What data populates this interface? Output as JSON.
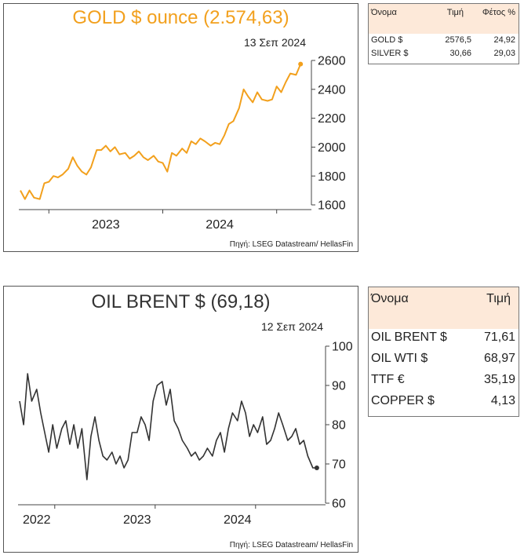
{
  "gold_panel": {
    "title": "GOLD $ ounce (2.574,63)",
    "date": "13 Σεπ 2024",
    "source": "Πηγή: LSEG Datastream/ HellasFin"
  },
  "oil_panel": {
    "title": "OIL BRENT $ (69,18)",
    "date": "12 Σεπ 2024",
    "source": "Πηγή: LSEG Datastream/ HellasFin"
  },
  "gold_table": {
    "headers": [
      "Όνομα",
      "Τιμή",
      "Φέτος %"
    ],
    "rows": [
      [
        "GOLD $",
        "2576,5",
        "24,92"
      ],
      [
        "SILVER $",
        "30,66",
        "29,03"
      ]
    ]
  },
  "oil_table": {
    "headers": [
      "Όνομα",
      "Τιμή"
    ],
    "rows": [
      [
        "OIL BRENT $",
        "71,61"
      ],
      [
        "OIL WTI $",
        "68,97"
      ],
      [
        "TTF €",
        "35,19"
      ],
      [
        "COPPER $",
        "4,13"
      ]
    ]
  },
  "chart_data": [
    {
      "type": "line",
      "title": "GOLD $ ounce (2.574,63)",
      "color": "#f2a01d",
      "ylim": [
        1600,
        2600
      ],
      "yticks": [
        1600,
        1800,
        2000,
        2200,
        2400,
        2600
      ],
      "xlim": [
        2022.25,
        2024.75
      ],
      "xlabels": [
        {
          "label": "2023",
          "x": 2023.0
        },
        {
          "label": "2024",
          "x": 2024.0
        }
      ],
      "xticks": [
        2022.5,
        2023.5,
        2024.5
      ],
      "grid": false,
      "last_point_marker": true,
      "series": [
        {
          "x": [
            2022.25,
            2022.29,
            2022.33,
            2022.37,
            2022.42,
            2022.46,
            2022.5,
            2022.54,
            2022.58,
            2022.62,
            2022.67,
            2022.71,
            2022.75,
            2022.79,
            2022.83,
            2022.87,
            2022.92,
            2022.96,
            2023.0,
            2023.04,
            2023.08,
            2023.12,
            2023.17,
            2023.21,
            2023.25,
            2023.29,
            2023.33,
            2023.37,
            2023.42,
            2023.46,
            2023.5,
            2023.54,
            2023.58,
            2023.62,
            2023.67,
            2023.71,
            2023.75,
            2023.79,
            2023.83,
            2023.87,
            2023.92,
            2023.96,
            2024.0,
            2024.04,
            2024.08,
            2024.12,
            2024.17,
            2024.21,
            2024.25,
            2024.29,
            2024.33,
            2024.37,
            2024.42,
            2024.46,
            2024.5,
            2024.54,
            2024.58,
            2024.62,
            2024.67,
            2024.71
          ],
          "y": [
            1700,
            1640,
            1700,
            1650,
            1640,
            1750,
            1760,
            1800,
            1790,
            1810,
            1850,
            1930,
            1870,
            1830,
            1810,
            1860,
            1980,
            1980,
            2010,
            1970,
            2000,
            1950,
            1960,
            1920,
            1940,
            1970,
            1930,
            1910,
            1940,
            1900,
            1890,
            1830,
            1960,
            1940,
            1990,
            1960,
            2040,
            2020,
            2060,
            2040,
            2010,
            2030,
            2020,
            2080,
            2160,
            2180,
            2270,
            2400,
            2350,
            2310,
            2380,
            2330,
            2320,
            2330,
            2420,
            2380,
            2450,
            2510,
            2500,
            2575
          ]
        }
      ]
    },
    {
      "type": "line",
      "title": "OIL BRENT $ (69,18)",
      "color": "#333333",
      "ylim": [
        60,
        100
      ],
      "yticks": [
        60,
        70,
        80,
        90,
        100
      ],
      "xlim": [
        2021.75,
        2024.75
      ],
      "xlabels": [
        {
          "label": "2022",
          "x": 2021.92
        },
        {
          "label": "2023",
          "x": 2022.92
        },
        {
          "label": "2024",
          "x": 2023.92
        }
      ],
      "xticks": [
        2022.1,
        2023.1,
        2024.1
      ],
      "grid": false,
      "last_point_marker": true,
      "series": [
        {
          "x": [
            2021.75,
            2021.79,
            2021.83,
            2021.87,
            2021.92,
            2021.96,
            2022.0,
            2022.04,
            2022.08,
            2022.12,
            2022.17,
            2022.21,
            2022.25,
            2022.29,
            2022.33,
            2022.37,
            2022.42,
            2022.46,
            2022.5,
            2022.54,
            2022.58,
            2022.62,
            2022.67,
            2022.71,
            2022.75,
            2022.79,
            2022.83,
            2022.87,
            2022.92,
            2022.96,
            2023.0,
            2023.04,
            2023.08,
            2023.12,
            2023.17,
            2023.21,
            2023.25,
            2023.29,
            2023.33,
            2023.37,
            2023.42,
            2023.46,
            2023.5,
            2023.54,
            2023.58,
            2023.62,
            2023.67,
            2023.71,
            2023.75,
            2023.79,
            2023.83,
            2023.87,
            2023.92,
            2023.96,
            2024.0,
            2024.04,
            2024.08,
            2024.12,
            2024.17,
            2024.21,
            2024.25,
            2024.29,
            2024.33,
            2024.37,
            2024.42,
            2024.46,
            2024.5,
            2024.54,
            2024.58,
            2024.62,
            2024.67,
            2024.71
          ],
          "y": [
            86,
            80,
            93,
            86,
            89,
            83,
            78,
            73,
            80,
            74,
            79,
            81,
            75,
            80,
            74,
            79,
            66,
            77,
            82,
            76,
            72,
            71,
            73,
            70,
            72,
            69,
            71,
            78,
            78,
            82,
            80,
            76,
            86,
            90,
            91,
            85,
            89,
            81,
            79,
            76,
            74,
            72,
            73,
            71,
            72,
            74,
            72,
            76,
            78,
            73,
            79,
            83,
            81,
            86,
            83,
            77,
            80,
            78,
            82,
            75,
            76,
            79,
            83,
            80,
            76,
            77,
            79,
            75,
            76,
            72,
            69,
            69
          ]
        }
      ]
    }
  ]
}
